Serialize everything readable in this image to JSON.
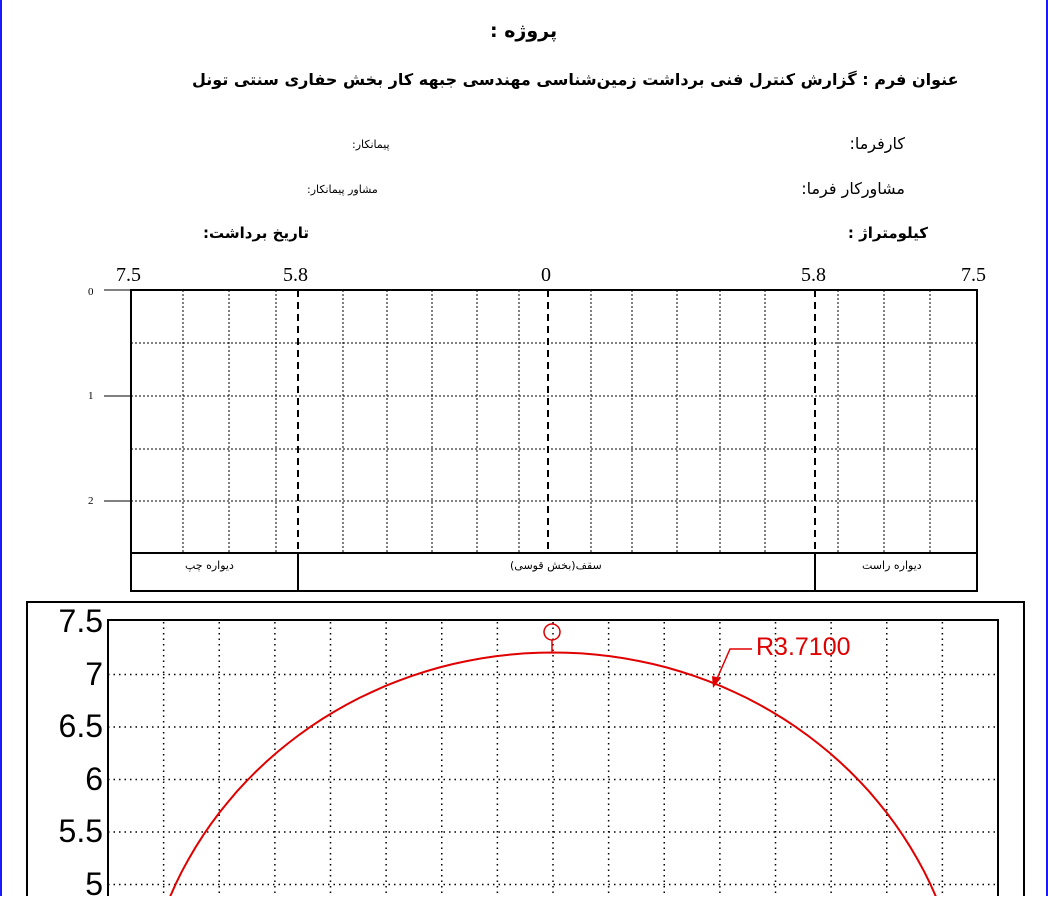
{
  "header": {
    "project_label": "پروژه :",
    "form_title": "عنوان فرم : گزارش کنترل فنی برداشت زمین‌شناسی مهندسی جبهه کار بخش حفاری سنتی تونل",
    "employer_label": "کارفرما:",
    "contractor_label": "پیمانکار:",
    "employer_consultant_label": "مشاورکار فرما:",
    "contractor_consultant_label": "مشاور پیمانکار:",
    "chainage_label": "کیلومتراژ :",
    "survey_date_label": "تاریخ برداشت:"
  },
  "face_grid": {
    "top_labels": [
      "7.5",
      "5.8",
      "0",
      "5.8",
      "7.5"
    ],
    "depth_labels": [
      "0",
      "1",
      "2"
    ],
    "zones": {
      "left_wall": "دیواره چپ",
      "crown": "سقف(بخش قوسی)",
      "right_wall": "دیواره راست"
    }
  },
  "chart_data": {
    "type": "line",
    "title": "",
    "y_tick_labels": [
      "7.5",
      "7",
      "6.5",
      "6",
      "5.5",
      "5"
    ],
    "ylim": [
      4.9,
      7.6
    ],
    "xlim": [
      -4,
      4
    ],
    "grid": true,
    "series": [
      {
        "shape": "circular-arc",
        "radius": 3.71,
        "center": [
          0,
          3.5
        ],
        "color": "#e00000"
      }
    ],
    "annotations": {
      "radius_label": "R3.7100",
      "centerline_symbol": "℄"
    }
  }
}
